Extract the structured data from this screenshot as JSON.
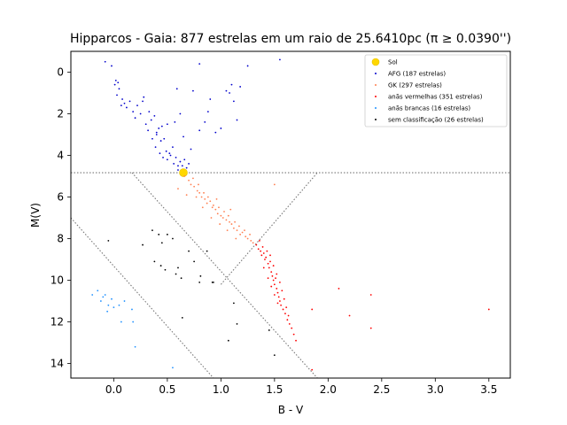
{
  "chart_data": {
    "type": "scatter",
    "title": "Hipparcos - Gaia: 877 estrelas em um raio de 25.6410pc (π ≥ 0.0390'')",
    "xlabel": "B - V",
    "ylabel": "M(V)",
    "xlim": [
      -0.4,
      3.7
    ],
    "ylim": [
      14.7,
      -1.0
    ],
    "y_inverted": true,
    "x_ticks": [
      "0.0",
      "0.5",
      "1.0",
      "1.5",
      "2.0",
      "2.5",
      "3.0",
      "3.5"
    ],
    "y_ticks": [
      "0",
      "2",
      "4",
      "6",
      "8",
      "10",
      "12",
      "14"
    ],
    "legend_position": "top-right",
    "guide_lines": [
      {
        "points": [
          [
            -0.4,
            4.83
          ],
          [
            3.7,
            4.83
          ]
        ]
      },
      {
        "points": [
          [
            0.17,
            4.83
          ],
          [
            1.9,
            14.7
          ]
        ]
      },
      {
        "points": [
          [
            -0.4,
            7.0
          ],
          [
            0.93,
            14.7
          ]
        ]
      },
      {
        "points": [
          [
            1.0,
            10.2
          ],
          [
            1.9,
            4.83
          ]
        ]
      }
    ],
    "series": [
      {
        "name": "Sol",
        "color": "#ffd700",
        "marker": "large",
        "points": [
          [
            0.65,
            4.83
          ]
        ]
      },
      {
        "name": "AFG (187 estrelas)",
        "color": "#0000cc",
        "points": [
          [
            -0.08,
            -0.5
          ],
          [
            -0.02,
            -0.3
          ],
          [
            0.01,
            0.6
          ],
          [
            0.02,
            0.4
          ],
          [
            0.04,
            0.5
          ],
          [
            0.03,
            1.1
          ],
          [
            0.05,
            0.8
          ],
          [
            0.08,
            1.3
          ],
          [
            0.07,
            1.6
          ],
          [
            0.1,
            1.5
          ],
          [
            0.12,
            1.7
          ],
          [
            0.15,
            1.4
          ],
          [
            0.18,
            1.9
          ],
          [
            0.2,
            2.2
          ],
          [
            0.22,
            1.6
          ],
          [
            0.25,
            2.0
          ],
          [
            0.28,
            1.2
          ],
          [
            0.3,
            2.5
          ],
          [
            0.32,
            2.8
          ],
          [
            0.35,
            2.3
          ],
          [
            0.38,
            2.1
          ],
          [
            0.4,
            3.0
          ],
          [
            0.42,
            2.7
          ],
          [
            0.45,
            2.6
          ],
          [
            0.44,
            3.3
          ],
          [
            0.47,
            3.2
          ],
          [
            0.5,
            2.5
          ],
          [
            0.49,
            3.8
          ],
          [
            0.52,
            3.9
          ],
          [
            0.5,
            4.2
          ],
          [
            0.53,
            4.0
          ],
          [
            0.55,
            3.6
          ],
          [
            0.56,
            4.4
          ],
          [
            0.58,
            4.1
          ],
          [
            0.6,
            4.5
          ],
          [
            0.62,
            4.3
          ],
          [
            0.6,
            4.7
          ],
          [
            0.64,
            4.5
          ],
          [
            0.66,
            4.2
          ],
          [
            0.68,
            4.6
          ],
          [
            0.7,
            4.4
          ],
          [
            0.57,
            2.4
          ],
          [
            0.36,
            3.2
          ],
          [
            0.39,
            3.6
          ],
          [
            0.43,
            3.9
          ],
          [
            0.46,
            4.1
          ],
          [
            0.4,
            2.9
          ],
          [
            0.33,
            1.9
          ],
          [
            0.27,
            1.4
          ],
          [
            0.62,
            2.0
          ],
          [
            0.65,
            3.1
          ],
          [
            0.72,
            3.7
          ],
          [
            0.8,
            2.8
          ],
          [
            0.85,
            2.4
          ],
          [
            0.9,
            1.3
          ],
          [
            0.95,
            2.9
          ],
          [
            1.0,
            2.7
          ],
          [
            1.05,
            0.9
          ],
          [
            1.1,
            0.6
          ],
          [
            1.12,
            1.4
          ],
          [
            1.15,
            2.3
          ],
          [
            1.18,
            0.7
          ],
          [
            1.25,
            -0.3
          ],
          [
            1.55,
            -0.6
          ],
          [
            0.8,
            -0.4
          ],
          [
            0.59,
            0.8
          ],
          [
            0.74,
            0.9
          ],
          [
            0.88,
            1.9
          ],
          [
            1.08,
            1.0
          ]
        ]
      },
      {
        "name": "GK (297 estrelas)",
        "color": "#ff7f50",
        "points": [
          [
            0.66,
            5.0
          ],
          [
            0.7,
            5.2
          ],
          [
            0.72,
            5.4
          ],
          [
            0.75,
            5.5
          ],
          [
            0.78,
            5.7
          ],
          [
            0.8,
            5.8
          ],
          [
            0.82,
            6.0
          ],
          [
            0.85,
            6.1
          ],
          [
            0.87,
            6.3
          ],
          [
            0.9,
            6.2
          ],
          [
            0.92,
            6.5
          ],
          [
            0.95,
            6.6
          ],
          [
            0.97,
            6.8
          ],
          [
            1.0,
            6.9
          ],
          [
            1.02,
            7.0
          ],
          [
            1.05,
            7.1
          ],
          [
            1.08,
            7.2
          ],
          [
            1.1,
            7.3
          ],
          [
            1.12,
            7.5
          ],
          [
            1.15,
            7.6
          ],
          [
            1.18,
            7.8
          ],
          [
            1.2,
            7.7
          ],
          [
            1.23,
            7.9
          ],
          [
            1.25,
            8.0
          ],
          [
            1.28,
            8.1
          ],
          [
            1.3,
            8.2
          ],
          [
            0.74,
            5.1
          ],
          [
            0.79,
            5.4
          ],
          [
            0.84,
            5.8
          ],
          [
            0.88,
            6.0
          ],
          [
            0.93,
            6.4
          ],
          [
            0.98,
            6.5
          ],
          [
            1.03,
            6.7
          ],
          [
            1.07,
            6.9
          ],
          [
            1.13,
            7.2
          ],
          [
            1.17,
            7.4
          ],
          [
            1.22,
            7.6
          ],
          [
            1.27,
            7.8
          ],
          [
            0.77,
            6.0
          ],
          [
            0.83,
            6.5
          ],
          [
            0.91,
            7.0
          ],
          [
            0.99,
            7.3
          ],
          [
            1.06,
            7.6
          ],
          [
            1.14,
            8.0
          ],
          [
            0.6,
            5.6
          ],
          [
            0.68,
            5.9
          ],
          [
            1.5,
            5.4
          ],
          [
            0.96,
            6.1
          ],
          [
            1.09,
            6.6
          ]
        ]
      },
      {
        "name": "anãs vermelhas (351 estrelas)",
        "color": "#ff0000",
        "points": [
          [
            1.33,
            8.3
          ],
          [
            1.35,
            8.5
          ],
          [
            1.37,
            8.6
          ],
          [
            1.38,
            8.8
          ],
          [
            1.4,
            8.7
          ],
          [
            1.41,
            9.0
          ],
          [
            1.42,
            8.9
          ],
          [
            1.44,
            9.2
          ],
          [
            1.45,
            9.4
          ],
          [
            1.46,
            9.1
          ],
          [
            1.47,
            9.6
          ],
          [
            1.48,
            9.8
          ],
          [
            1.49,
            10.0
          ],
          [
            1.5,
            10.2
          ],
          [
            1.51,
            9.9
          ],
          [
            1.52,
            10.4
          ],
          [
            1.53,
            10.6
          ],
          [
            1.54,
            10.8
          ],
          [
            1.55,
            11.0
          ],
          [
            1.56,
            11.2
          ],
          [
            1.58,
            11.4
          ],
          [
            1.6,
            11.6
          ],
          [
            1.62,
            11.9
          ],
          [
            1.64,
            12.1
          ],
          [
            1.66,
            12.3
          ],
          [
            1.68,
            12.6
          ],
          [
            1.7,
            12.9
          ],
          [
            1.36,
            8.1
          ],
          [
            1.39,
            8.4
          ],
          [
            1.43,
            8.6
          ],
          [
            1.46,
            8.8
          ],
          [
            1.49,
            9.3
          ],
          [
            1.52,
            9.7
          ],
          [
            1.55,
            10.1
          ],
          [
            1.57,
            10.5
          ],
          [
            1.59,
            10.9
          ],
          [
            1.61,
            11.3
          ],
          [
            1.63,
            11.7
          ],
          [
            1.4,
            9.4
          ],
          [
            1.44,
            9.9
          ],
          [
            1.47,
            10.3
          ],
          [
            1.5,
            10.7
          ],
          [
            1.53,
            11.1
          ],
          [
            1.85,
            14.3
          ],
          [
            2.1,
            10.4
          ],
          [
            2.2,
            11.7
          ],
          [
            2.4,
            10.7
          ],
          [
            2.4,
            12.3
          ],
          [
            3.5,
            11.4
          ],
          [
            1.85,
            11.4
          ]
        ]
      },
      {
        "name": "anãs brancas (16 estrelas)",
        "color": "#1e90ff",
        "points": [
          [
            -0.2,
            10.7
          ],
          [
            -0.15,
            10.5
          ],
          [
            -0.12,
            11.0
          ],
          [
            -0.1,
            10.8
          ],
          [
            -0.08,
            10.7
          ],
          [
            -0.05,
            11.2
          ],
          [
            -0.06,
            11.5
          ],
          [
            -0.02,
            10.9
          ],
          [
            0.0,
            11.3
          ],
          [
            0.05,
            11.2
          ],
          [
            0.1,
            11.0
          ],
          [
            0.07,
            12.0
          ],
          [
            0.17,
            11.4
          ],
          [
            0.18,
            12.0
          ],
          [
            0.2,
            13.2
          ],
          [
            0.55,
            14.2
          ]
        ]
      },
      {
        "name": "sem classificação (26 estrelas)",
        "color": "#000000",
        "points": [
          [
            -0.05,
            8.1
          ],
          [
            0.27,
            8.3
          ],
          [
            0.36,
            7.6
          ],
          [
            0.42,
            7.8
          ],
          [
            0.45,
            8.2
          ],
          [
            0.44,
            9.3
          ],
          [
            0.48,
            9.5
          ],
          [
            0.5,
            7.8
          ],
          [
            0.55,
            8.0
          ],
          [
            0.6,
            9.4
          ],
          [
            0.63,
            9.9
          ],
          [
            0.7,
            8.6
          ],
          [
            0.75,
            9.1
          ],
          [
            0.8,
            10.1
          ],
          [
            0.92,
            10.1
          ],
          [
            0.93,
            10.1
          ],
          [
            1.12,
            11.1
          ],
          [
            1.15,
            12.1
          ],
          [
            1.07,
            12.9
          ],
          [
            1.45,
            12.4
          ],
          [
            1.5,
            13.6
          ],
          [
            0.87,
            8.6
          ],
          [
            0.81,
            9.8
          ],
          [
            0.64,
            11.8
          ],
          [
            0.58,
            9.7
          ],
          [
            0.38,
            9.1
          ]
        ]
      }
    ]
  }
}
